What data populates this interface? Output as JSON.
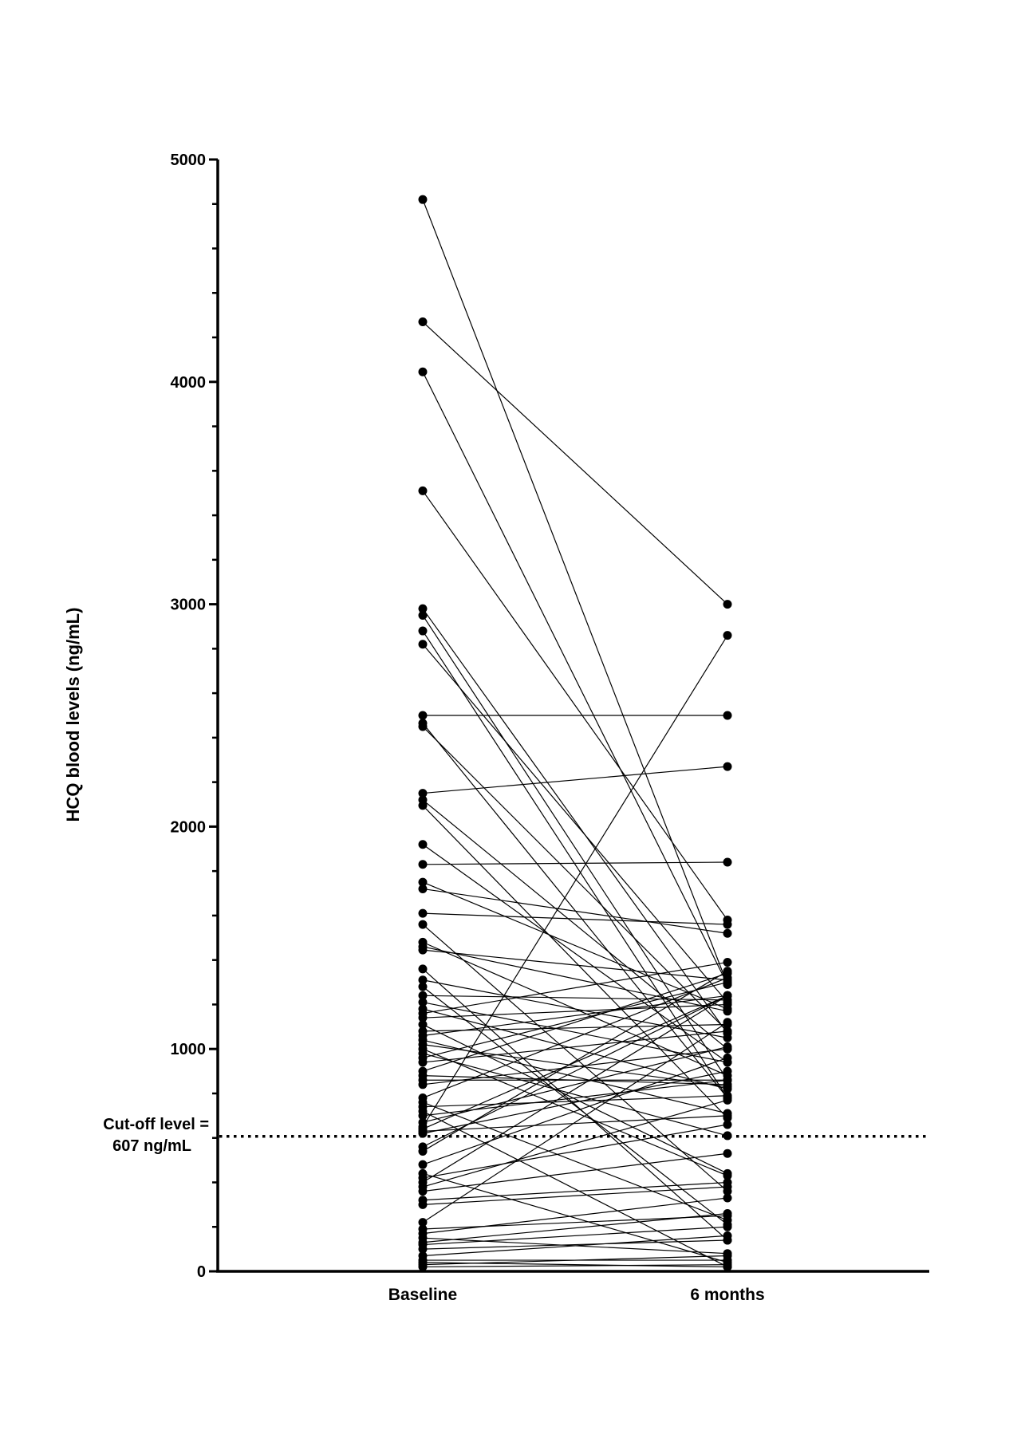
{
  "chart_data": {
    "type": "line",
    "categories": [
      "Baseline",
      "6 months"
    ],
    "ylabel": "HCQ blood levels (ng/mL)",
    "ylim": [
      0,
      5000
    ],
    "yticks": [
      0,
      1000,
      2000,
      3000,
      4000,
      5000
    ],
    "y_minor_step": 200,
    "grid": false,
    "legend": "none",
    "reference_line": {
      "value": 607,
      "style": "dotted",
      "label_lines": [
        "Cut-off level =",
        "607 ng/mL"
      ]
    },
    "colors": {
      "line": "#000000",
      "marker": "#000000",
      "axis": "#000000"
    },
    "pairs": [
      [
        4820,
        1290
      ],
      [
        4270,
        3000
      ],
      [
        4045,
        1290
      ],
      [
        3510,
        1580
      ],
      [
        2980,
        1070
      ],
      [
        2950,
        860
      ],
      [
        2880,
        780
      ],
      [
        2820,
        1210
      ],
      [
        2500,
        2500
      ],
      [
        2465,
        780
      ],
      [
        2450,
        1080
      ],
      [
        2150,
        2270
      ],
      [
        2120,
        1000
      ],
      [
        2095,
        690
      ],
      [
        1920,
        940
      ],
      [
        1830,
        1840
      ],
      [
        1750,
        1180
      ],
      [
        1720,
        1520
      ],
      [
        1610,
        1560
      ],
      [
        1560,
        360
      ],
      [
        1480,
        880
      ],
      [
        1460,
        1170
      ],
      [
        1445,
        1310
      ],
      [
        1360,
        140
      ],
      [
        1310,
        1050
      ],
      [
        1280,
        210
      ],
      [
        1240,
        1220
      ],
      [
        1210,
        940
      ],
      [
        1180,
        820
      ],
      [
        1160,
        1390
      ],
      [
        1140,
        1200
      ],
      [
        1110,
        440
      ],
      [
        1080,
        1110
      ],
      [
        1060,
        1240
      ],
      [
        1040,
        710
      ],
      [
        1020,
        830
      ],
      [
        1000,
        430
      ],
      [
        980,
        610
      ],
      [
        960,
        1300
      ],
      [
        940,
        1080
      ],
      [
        900,
        1340
      ],
      [
        880,
        840
      ],
      [
        860,
        860
      ],
      [
        840,
        1000
      ],
      [
        780,
        1320
      ],
      [
        760,
        230
      ],
      [
        740,
        790
      ],
      [
        720,
        20
      ],
      [
        700,
        860
      ],
      [
        670,
        1010
      ],
      [
        650,
        2860
      ],
      [
        640,
        1240
      ],
      [
        630,
        700
      ],
      [
        620,
        900
      ],
      [
        560,
        1240
      ],
      [
        540,
        1350
      ],
      [
        480,
        960
      ],
      [
        440,
        40
      ],
      [
        420,
        660
      ],
      [
        400,
        1240
      ],
      [
        380,
        770
      ],
      [
        360,
        530
      ],
      [
        320,
        400
      ],
      [
        300,
        380
      ],
      [
        220,
        1120
      ],
      [
        190,
        250
      ],
      [
        170,
        330
      ],
      [
        150,
        80
      ],
      [
        130,
        260
      ],
      [
        120,
        200
      ],
      [
        100,
        140
      ],
      [
        70,
        160
      ],
      [
        50,
        50
      ],
      [
        40,
        20
      ],
      [
        30,
        70
      ],
      [
        20,
        30
      ]
    ]
  }
}
